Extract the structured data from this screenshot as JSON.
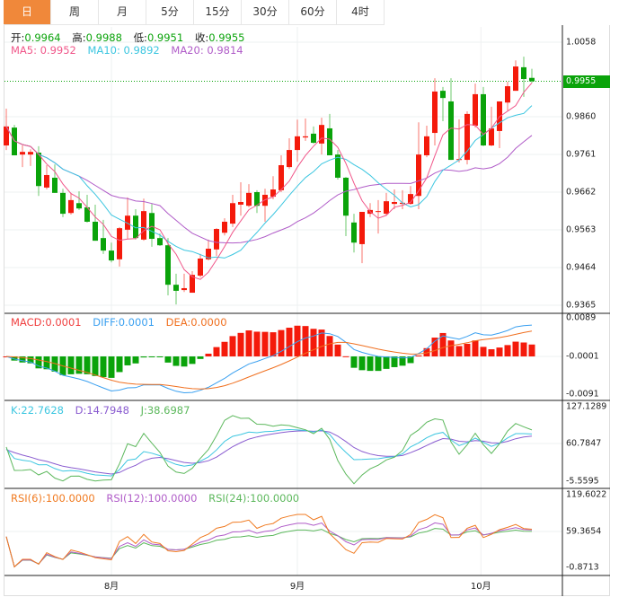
{
  "tabs": [
    {
      "label": "日",
      "active": true
    },
    {
      "label": "周"
    },
    {
      "label": "月"
    },
    {
      "label": "5分"
    },
    {
      "label": "15分"
    },
    {
      "label": "30分"
    },
    {
      "label": "60分"
    },
    {
      "label": "4时"
    }
  ],
  "ohlc_header": {
    "open_label": "开:",
    "open": "0.9964",
    "high_label": "高:",
    "high": "0.9988",
    "low_label": "低:",
    "low": "0.9951",
    "close_label": "收:",
    "close": "0.9955"
  },
  "ma_header": {
    "ma5": "MA5: 0.9952",
    "ma10": "MA10: 0.9892",
    "ma20": "MA20: 0.9814"
  },
  "macd_header": {
    "macd": "MACD:0.0001",
    "diff": "DIFF:0.0001",
    "dea": "DEA:0.0000"
  },
  "kdj_header": {
    "k": "K:22.7628",
    "d": "D:14.7948",
    "j": "J:38.6987"
  },
  "rsi_header": {
    "rsi6": "RSI(6):100.0000",
    "rsi12": "RSI(12):100.0000",
    "rsi24": "RSI(24):100.0000"
  },
  "price_axis": [
    "1.0058",
    "0.9860",
    "0.9761",
    "0.9662",
    "0.9563",
    "0.9464",
    "0.9365"
  ],
  "current_price": "0.9955",
  "macd_axis": [
    "0.0089",
    "-0.0001",
    "-0.0091"
  ],
  "kdj_axis": [
    "127.1289",
    "60.7847",
    "-5.5595"
  ],
  "rsi_axis": [
    "119.6022",
    "59.3654",
    "-0.8713"
  ],
  "months": [
    {
      "label": "8月",
      "index": 13
    },
    {
      "label": "9月",
      "index": 36
    },
    {
      "label": "10月",
      "index": 58.7
    }
  ],
  "colors": {
    "up": "#f41a0b",
    "down": "#0aa30a",
    "ma5": "#f0578a",
    "ma10": "#3cc6e0",
    "ma20": "#b05cc8",
    "diff": "#3aa0f0",
    "dea": "#f07020",
    "k": "#3cc6e0",
    "d": "#8a5cd0",
    "j": "#5cb85c",
    "rsi6": "#f07a20",
    "rsi12": "#b05cc8",
    "rsi24": "#5cb85c",
    "accent": "#f0883a"
  },
  "chart_data": {
    "type": "candlestick",
    "ylim": [
      0.9365,
      1.0058
    ],
    "ohlc": [
      [
        0.9786,
        0.9883,
        0.9774,
        0.9836
      ],
      [
        0.9833,
        0.984,
        0.976,
        0.976
      ],
      [
        0.9762,
        0.9786,
        0.9729,
        0.9769
      ],
      [
        0.9762,
        0.9776,
        0.9732,
        0.9769
      ],
      [
        0.9767,
        0.9784,
        0.9653,
        0.9679
      ],
      [
        0.9675,
        0.9734,
        0.967,
        0.9708
      ],
      [
        0.9701,
        0.9736,
        0.9661,
        0.9661
      ],
      [
        0.9661,
        0.9672,
        0.9597,
        0.9606
      ],
      [
        0.9608,
        0.9661,
        0.9604,
        0.9642
      ],
      [
        0.9634,
        0.9665,
        0.9616,
        0.962
      ],
      [
        0.9623,
        0.9656,
        0.9583,
        0.9585
      ],
      [
        0.9585,
        0.963,
        0.9535,
        0.9535
      ],
      [
        0.9542,
        0.959,
        0.95,
        0.9509
      ],
      [
        0.9509,
        0.953,
        0.9478,
        0.9483
      ],
      [
        0.9486,
        0.9571,
        0.9467,
        0.9568
      ],
      [
        0.9564,
        0.9649,
        0.954,
        0.9601
      ],
      [
        0.9601,
        0.9618,
        0.9538,
        0.9542
      ],
      [
        0.9538,
        0.9646,
        0.9535,
        0.9613
      ],
      [
        0.9608,
        0.9632,
        0.9519,
        0.954
      ],
      [
        0.9542,
        0.9554,
        0.9521,
        0.9523
      ],
      [
        0.9523,
        0.9542,
        0.9391,
        0.9419
      ],
      [
        0.9419,
        0.9448,
        0.9367,
        0.9403
      ],
      [
        0.9405,
        0.9448,
        0.94,
        0.941
      ],
      [
        0.9398,
        0.9455,
        0.9398,
        0.9445
      ],
      [
        0.9443,
        0.95,
        0.9438,
        0.9488
      ],
      [
        0.9486,
        0.9538,
        0.9483,
        0.9514
      ],
      [
        0.9512,
        0.9568,
        0.9495,
        0.9566
      ],
      [
        0.9556,
        0.9594,
        0.9549,
        0.9585
      ],
      [
        0.958,
        0.9656,
        0.9571,
        0.9634
      ],
      [
        0.963,
        0.9689,
        0.9601,
        0.9637
      ],
      [
        0.9627,
        0.9684,
        0.9623,
        0.9661
      ],
      [
        0.9663,
        0.9668,
        0.9608,
        0.9627
      ],
      [
        0.9627,
        0.9672,
        0.9585,
        0.9656
      ],
      [
        0.9651,
        0.9705,
        0.9644,
        0.967
      ],
      [
        0.9668,
        0.976,
        0.9663,
        0.9734
      ],
      [
        0.9729,
        0.9805,
        0.9724,
        0.9774
      ],
      [
        0.9774,
        0.9854,
        0.9743,
        0.981
      ],
      [
        0.9807,
        0.9857,
        0.9798,
        0.981
      ],
      [
        0.9817,
        0.9836,
        0.9791,
        0.9793
      ],
      [
        0.9791,
        0.9859,
        0.9762,
        0.984
      ],
      [
        0.9831,
        0.9869,
        0.976,
        0.976
      ],
      [
        0.9762,
        0.9774,
        0.9696,
        0.9701
      ],
      [
        0.9701,
        0.9703,
        0.9547,
        0.9601
      ],
      [
        0.9583,
        0.9606,
        0.9504,
        0.953
      ],
      [
        0.9526,
        0.9611,
        0.9476,
        0.9611
      ],
      [
        0.9606,
        0.9634,
        0.9597,
        0.9616
      ],
      [
        0.9611,
        0.9642,
        0.9554,
        0.9613
      ],
      [
        0.9606,
        0.9661,
        0.9601,
        0.9639
      ],
      [
        0.9632,
        0.967,
        0.9618,
        0.9637
      ],
      [
        0.9632,
        0.9668,
        0.9618,
        0.9635
      ],
      [
        0.9632,
        0.9679,
        0.963,
        0.9658
      ],
      [
        0.9653,
        0.9847,
        0.9618,
        0.9762
      ],
      [
        0.976,
        0.9838,
        0.9755,
        0.981
      ],
      [
        0.9819,
        0.9963,
        0.9786,
        0.9928
      ],
      [
        0.993,
        0.994,
        0.985,
        0.9911
      ],
      [
        0.9902,
        0.9963,
        0.9748,
        0.9748
      ],
      [
        0.9748,
        0.9855,
        0.9741,
        0.975
      ],
      [
        0.9748,
        0.9876,
        0.9736,
        0.9869
      ],
      [
        0.9838,
        0.9949,
        0.9833,
        0.9921
      ],
      [
        0.9921,
        0.994,
        0.9784,
        0.9786
      ],
      [
        0.9786,
        0.9888,
        0.9784,
        0.9831
      ],
      [
        0.9824,
        0.9902,
        0.9779,
        0.9902
      ],
      [
        0.9899,
        0.9954,
        0.9878,
        0.9942
      ],
      [
        0.993,
        1.001,
        0.993,
        0.9994
      ],
      [
        0.9992,
        1.002,
        0.9914,
        0.9961
      ],
      [
        0.9964,
        0.9988,
        0.9951,
        0.9955
      ]
    ]
  }
}
